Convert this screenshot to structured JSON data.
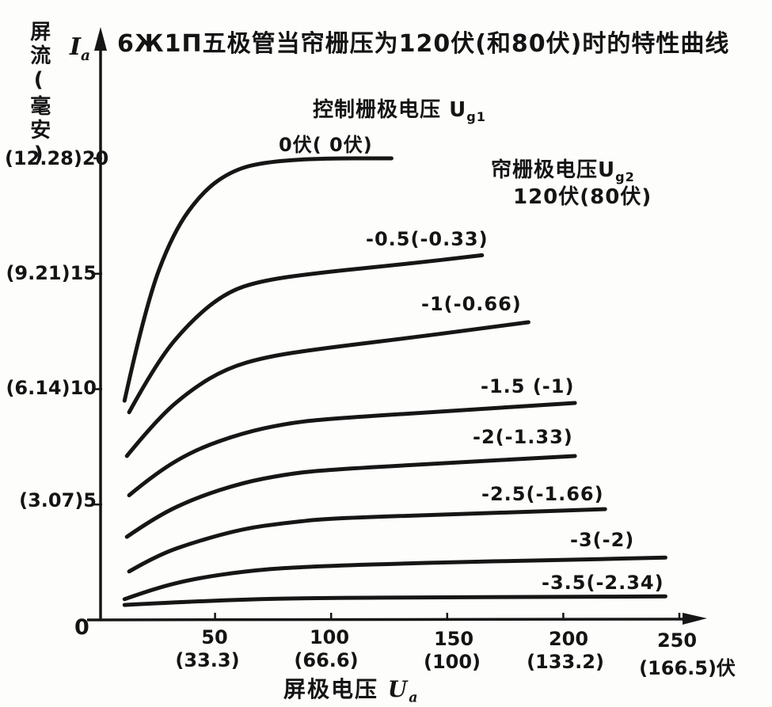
{
  "title": "6Ж1П五极管当帘栅压为120伏(和80伏)时的特性曲线",
  "y_axis": {
    "name_vertical": "屏流(毫安)",
    "symbol_main": "I",
    "symbol_sub": "a",
    "origin": "0",
    "ticks": [
      {
        "label": "(12.28)20",
        "value": 20
      },
      {
        "label": "(9.21)15",
        "value": 15
      },
      {
        "label": "(6.14)10",
        "value": 10
      },
      {
        "label": "(3.07)5",
        "value": 5
      }
    ]
  },
  "x_axis": {
    "name": "屏极电压",
    "symbol_main": "U",
    "symbol_sub": "a",
    "ticks": [
      {
        "main": "50",
        "alt": "(33.3)",
        "value": 50
      },
      {
        "main": "100",
        "alt": "(66.6)",
        "value": 100
      },
      {
        "main": "150",
        "alt": "(100)",
        "value": 150
      },
      {
        "main": "200",
        "alt": "(133.2)",
        "value": 200
      },
      {
        "main": "250",
        "alt": "(166.5)伏",
        "value": 250
      }
    ]
  },
  "annotations": {
    "control_grid_label": "控制栅极电压",
    "control_grid_symbol_main": "U",
    "control_grid_symbol_sub": "g1",
    "screen_grid_label": "帘栅极电压",
    "screen_grid_symbol_main": "U",
    "screen_grid_symbol_sub": "g2",
    "screen_grid_value": "120伏(80伏)"
  },
  "chart_data": {
    "type": "line",
    "title": "6Ж1П五极管当帘栅压为120伏(和80伏)时的特性曲线",
    "xlabel": "屏极电压 Ua (伏)",
    "ylabel": "屏流 Ia (毫安)",
    "xlim": [
      0,
      262
    ],
    "ylim": [
      0,
      22.4
    ],
    "grid": false,
    "x_ticks_primary": [
      50,
      100,
      150,
      200,
      250
    ],
    "x_ticks_secondary_ug2_80": [
      33.3,
      66.6,
      100,
      133.2,
      166.5
    ],
    "y_ticks_primary": [
      5,
      10,
      15,
      20
    ],
    "y_ticks_secondary_ug2_80": [
      3.07,
      6.14,
      9.21,
      12.28
    ],
    "legend_note": "控制栅极电压 Ug1 per curve; 帘栅极电压 Ug2 = 120伏 (values in parentheses for 80伏)",
    "series": [
      {
        "label": "0伏( 0伏)",
        "points": [
          [
            11,
            9.5
          ],
          [
            20,
            13.6
          ],
          [
            32,
            16.8
          ],
          [
            45,
            18.6
          ],
          [
            58,
            19.5
          ],
          [
            72,
            19.85
          ],
          [
            95,
            20.0
          ],
          [
            126,
            20.0
          ]
        ]
      },
      {
        "label": "-0.5(-0.33)",
        "points": [
          [
            13,
            9.0
          ],
          [
            25,
            11.2
          ],
          [
            40,
            13.0
          ],
          [
            55,
            14.2
          ],
          [
            70,
            14.7
          ],
          [
            95,
            15.05
          ],
          [
            130,
            15.4
          ],
          [
            165,
            15.8
          ]
        ]
      },
      {
        "label": "-1(-0.66)",
        "points": [
          [
            12,
            7.1
          ],
          [
            25,
            8.7
          ],
          [
            40,
            10.0
          ],
          [
            55,
            10.9
          ],
          [
            72,
            11.4
          ],
          [
            95,
            11.75
          ],
          [
            140,
            12.3
          ],
          [
            185,
            12.9
          ]
        ]
      },
      {
        "label": "-1.5 (-1)",
        "points": [
          [
            13,
            5.4
          ],
          [
            25,
            6.4
          ],
          [
            42,
            7.4
          ],
          [
            62,
            8.1
          ],
          [
            80,
            8.5
          ],
          [
            97,
            8.7
          ],
          [
            150,
            9.05
          ],
          [
            205,
            9.4
          ]
        ]
      },
      {
        "label": "-2(-1.33)",
        "points": [
          [
            12,
            3.6
          ],
          [
            25,
            4.5
          ],
          [
            42,
            5.3
          ],
          [
            62,
            5.95
          ],
          [
            80,
            6.3
          ],
          [
            97,
            6.5
          ],
          [
            150,
            6.8
          ],
          [
            205,
            7.1
          ]
        ]
      },
      {
        "label": "-2.5(-1.66)",
        "points": [
          [
            13,
            2.1
          ],
          [
            25,
            2.8
          ],
          [
            42,
            3.4
          ],
          [
            62,
            3.95
          ],
          [
            80,
            4.2
          ],
          [
            99,
            4.4
          ],
          [
            160,
            4.6
          ],
          [
            218,
            4.8
          ]
        ]
      },
      {
        "label": "-3(-2)",
        "points": [
          [
            11,
            0.9
          ],
          [
            25,
            1.4
          ],
          [
            42,
            1.8
          ],
          [
            62,
            2.1
          ],
          [
            85,
            2.3
          ],
          [
            150,
            2.5
          ],
          [
            200,
            2.6
          ],
          [
            244,
            2.7
          ]
        ]
      },
      {
        "label": "-3.5(-2.34)",
        "points": [
          [
            11,
            0.65
          ],
          [
            30,
            0.75
          ],
          [
            62,
            0.88
          ],
          [
            92,
            0.95
          ],
          [
            150,
            0.98
          ],
          [
            200,
            1.0
          ],
          [
            244,
            1.02
          ]
        ]
      }
    ]
  }
}
